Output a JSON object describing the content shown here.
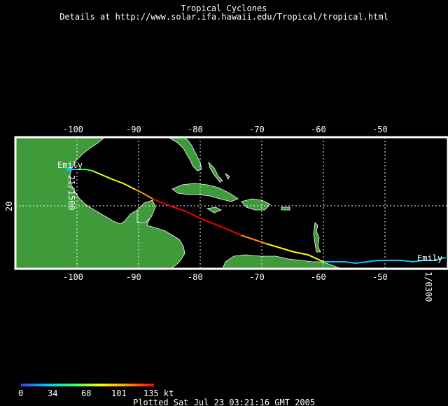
{
  "title": "Tropical Cyclones",
  "subtitle": "Details at http://www.solar.ifa.hawaii.edu/Tropical/tropical.html",
  "map": {
    "lon_labels_top": [
      "-100",
      "-90",
      "-80",
      "-70",
      "-60",
      "-50"
    ],
    "lon_labels_bottom": [
      "-100",
      "-90",
      "-80",
      "-70",
      "-60",
      "-50"
    ],
    "lat_labels": [
      "20"
    ],
    "colors": {
      "land": "#3f9a3a",
      "ocean": "#000000",
      "grid": "#ffffff",
      "frame": "#ffffff"
    }
  },
  "storm": {
    "name_start": "Emily",
    "name_end": "Emily",
    "date_start": "21/1500",
    "date_end": "1/0300"
  },
  "legend": {
    "ticks": [
      "0",
      "34",
      "68",
      "101",
      "135 kt"
    ],
    "colors": [
      "#3c3cff",
      "#00c8ff",
      "#3cff64",
      "#ffff00",
      "#ff9600",
      "#ff0000"
    ]
  },
  "footer": "Plotted Sat Jul 23 03:21:16 GMT 2005"
}
